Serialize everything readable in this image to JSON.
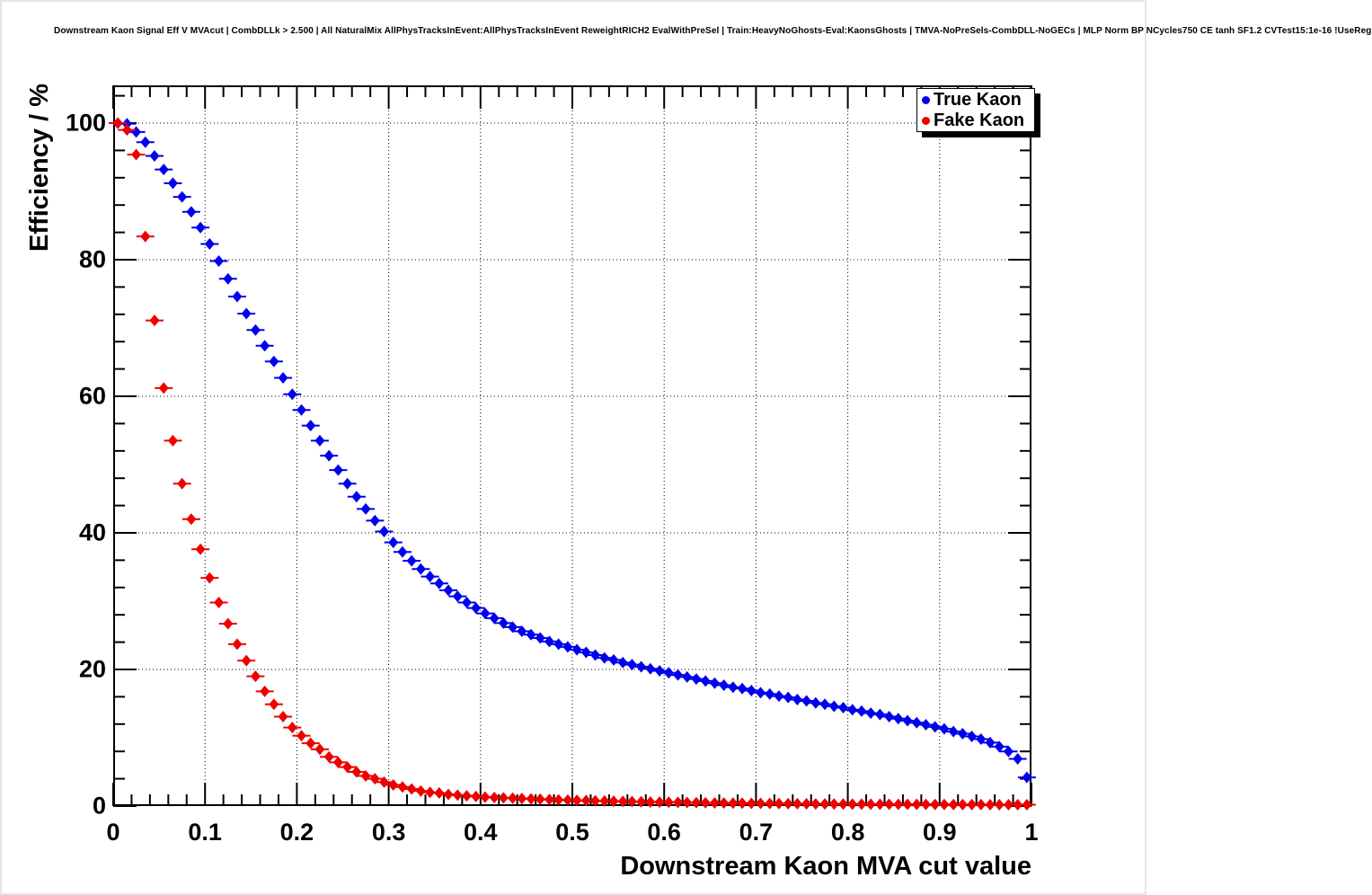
{
  "title": "Downstream Kaon Signal Eff V MVAcut | CombDLLk > 2.500 | All NaturalMix AllPhysTracksInEvent:AllPhysTracksInEvent ReweightRICH2 EvalWithPreSel | Train:HeavyNoGhosts-Eval:KaonsGhosts | TMVA-NoPreSels-CombDLL-NoGECs | MLP Norm BP NCycles750 CE tanh SF1.2 CVTest15:1e-16 !UseReg",
  "axes": {
    "x": {
      "title": "Downstream Kaon MVA cut value",
      "min": 0,
      "max": 1,
      "ticks": [
        0,
        0.1,
        0.2,
        0.3,
        0.4,
        0.5,
        0.6,
        0.7,
        0.8,
        0.9,
        1
      ],
      "tick_labels": [
        "0",
        "0.1",
        "0.2",
        "0.3",
        "0.4",
        "0.5",
        "0.6",
        "0.7",
        "0.8",
        "0.9",
        "1"
      ],
      "minor_step": 0.02
    },
    "y": {
      "title": "Efficiency / %",
      "min": 0,
      "max": 105.5,
      "ticks": [
        0,
        20,
        40,
        60,
        80,
        100
      ],
      "tick_labels": [
        "0",
        "20",
        "40",
        "60",
        "80",
        "100"
      ],
      "minor_step": 4
    }
  },
  "legend": {
    "items": [
      {
        "label": "True Kaon",
        "color": "#0000ee"
      },
      {
        "label": "Fake Kaon",
        "color": "#ee0000"
      }
    ]
  },
  "style": {
    "frame_bg": "#ffffff",
    "frame_line": "#000000",
    "grid_color": "#000000",
    "true_kaon_color": "#0000ee",
    "fake_kaon_color": "#ee0000"
  },
  "chart_data": {
    "type": "scatter",
    "title": "Downstream Kaon Signal Eff V MVAcut | CombDLLk > 2.500",
    "xlabel": "Downstream Kaon MVA cut value",
    "ylabel": "Efficiency / %",
    "xlim": [
      0,
      1
    ],
    "ylim": [
      0,
      105.5
    ],
    "grid": true,
    "legend_position": "top-right",
    "marker": "diamond-with-horizontal-error-bar",
    "x": [
      0.005,
      0.015,
      0.025,
      0.035,
      0.045,
      0.055,
      0.065,
      0.075,
      0.085,
      0.095,
      0.105,
      0.115,
      0.125,
      0.135,
      0.145,
      0.155,
      0.165,
      0.175,
      0.185,
      0.195,
      0.205,
      0.215,
      0.225,
      0.235,
      0.245,
      0.255,
      0.265,
      0.275,
      0.285,
      0.295,
      0.305,
      0.315,
      0.325,
      0.335,
      0.345,
      0.355,
      0.365,
      0.375,
      0.385,
      0.395,
      0.405,
      0.415,
      0.425,
      0.435,
      0.445,
      0.455,
      0.465,
      0.475,
      0.485,
      0.495,
      0.505,
      0.515,
      0.525,
      0.535,
      0.545,
      0.555,
      0.565,
      0.575,
      0.585,
      0.595,
      0.605,
      0.615,
      0.625,
      0.635,
      0.645,
      0.655,
      0.665,
      0.675,
      0.685,
      0.695,
      0.705,
      0.715,
      0.725,
      0.735,
      0.745,
      0.755,
      0.765,
      0.775,
      0.785,
      0.795,
      0.805,
      0.815,
      0.825,
      0.835,
      0.845,
      0.855,
      0.865,
      0.875,
      0.885,
      0.895,
      0.905,
      0.915,
      0.925,
      0.935,
      0.945,
      0.955,
      0.965,
      0.975,
      0.985,
      0.995
    ],
    "series": [
      {
        "name": "True Kaon",
        "color": "#0000ee",
        "values": [
          100,
          99.9,
          98.7,
          97.2,
          95.2,
          93.2,
          91.2,
          89.2,
          87,
          84.7,
          82.3,
          79.8,
          77.2,
          74.6,
          72.1,
          69.7,
          67.4,
          65.1,
          62.7,
          60.3,
          58,
          55.7,
          53.5,
          51.3,
          49.2,
          47.2,
          45.3,
          43.5,
          41.8,
          40.2,
          38.6,
          37.2,
          35.9,
          34.7,
          33.6,
          32.6,
          31.6,
          30.7,
          29.8,
          29,
          28.2,
          27.5,
          26.8,
          26.2,
          25.6,
          25.1,
          24.6,
          24.1,
          23.7,
          23.3,
          22.9,
          22.5,
          22.1,
          21.7,
          21.4,
          21,
          20.7,
          20.4,
          20.1,
          19.8,
          19.5,
          19.2,
          18.9,
          18.6,
          18.3,
          18,
          17.7,
          17.4,
          17.2,
          16.9,
          16.6,
          16.4,
          16.1,
          15.9,
          15.6,
          15.4,
          15.1,
          14.9,
          14.6,
          14.4,
          14.1,
          13.9,
          13.6,
          13.4,
          13.1,
          12.8,
          12.5,
          12.2,
          11.9,
          11.6,
          11.3,
          10.9,
          10.6,
          10.2,
          9.8,
          9.3,
          8.7,
          8,
          6.9,
          4.2
        ]
      },
      {
        "name": "Fake Kaon",
        "color": "#ee0000",
        "values": [
          100,
          99,
          95.4,
          83.4,
          71.1,
          61.2,
          53.5,
          47.2,
          42,
          37.6,
          33.4,
          29.8,
          26.7,
          23.7,
          21.3,
          19,
          16.8,
          14.9,
          13.1,
          11.5,
          10.3,
          9.2,
          8.3,
          7.2,
          6.4,
          5.7,
          5,
          4.4,
          4,
          3.5,
          3.1,
          2.8,
          2.5,
          2.2,
          2,
          1.9,
          1.7,
          1.6,
          1.5,
          1.4,
          1.3,
          1.25,
          1.2,
          1.15,
          1.1,
          1.05,
          1,
          0.95,
          0.9,
          0.87,
          0.84,
          0.8,
          0.77,
          0.74,
          0.71,
          0.68,
          0.65,
          0.63,
          0.6,
          0.58,
          0.56,
          0.54,
          0.52,
          0.5,
          0.48,
          0.46,
          0.45,
          0.43,
          0.42,
          0.4,
          0.39,
          0.38,
          0.36,
          0.35,
          0.34,
          0.33,
          0.32,
          0.31,
          0.3,
          0.29,
          0.28,
          0.28,
          0.27,
          0.26,
          0.26,
          0.25,
          0.25,
          0.24,
          0.24,
          0.23,
          0.23,
          0.22,
          0.22,
          0.21,
          0.21,
          0.2,
          0.2,
          0.2,
          0.19,
          0.19
        ]
      }
    ]
  }
}
